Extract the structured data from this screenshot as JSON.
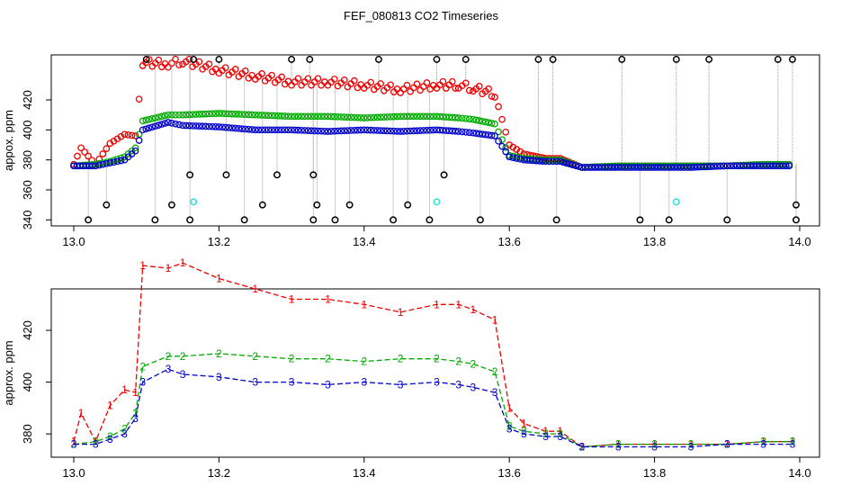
{
  "figure": {
    "title": "FEF_080813  CO2 Timeseries"
  },
  "chart_data": [
    {
      "type": "scatter",
      "title": "",
      "xlabel": "",
      "ylabel": "appox. ppm",
      "xlim": [
        13.0,
        14.0
      ],
      "ylim": [
        336,
        450
      ],
      "x_ticks": [
        13.0,
        13.2,
        13.4,
        13.6,
        13.8,
        14.0
      ],
      "x_tick_labels": [
        "13.0",
        "13.2",
        "13.4",
        "13.6",
        "13.8",
        "14.0"
      ],
      "y_ticks": [
        340,
        360,
        380,
        400,
        420
      ],
      "y_tick_labels": [
        "340",
        "360",
        "380",
        "400",
        "420"
      ],
      "colors": {
        "s1": "#ee0000",
        "s2": "#00aa00",
        "s3": "#0000cc",
        "spike": "#000000",
        "low": "#33dddd",
        "drop": "#999999"
      },
      "series": [
        {
          "key": "s1",
          "values": [
            [
              13.0,
              377
            ],
            [
              13.01,
              388
            ],
            [
              13.03,
              377
            ],
            [
              13.05,
              391
            ],
            [
              13.07,
              397
            ],
            [
              13.085,
              396
            ],
            [
              13.095,
              445
            ],
            [
              13.13,
              444
            ],
            [
              13.15,
              446
            ],
            [
              13.2,
              440
            ],
            [
              13.25,
              436
            ],
            [
              13.3,
              432
            ],
            [
              13.35,
              432
            ],
            [
              13.4,
              430
            ],
            [
              13.45,
              427
            ],
            [
              13.5,
              430
            ],
            [
              13.53,
              430
            ],
            [
              13.55,
              428
            ],
            [
              13.58,
              424
            ],
            [
              13.6,
              390
            ],
            [
              13.62,
              384
            ],
            [
              13.65,
              381
            ],
            [
              13.67,
              381
            ],
            [
              13.7,
              375
            ],
            [
              13.75,
              376
            ],
            [
              13.8,
              376
            ],
            [
              13.85,
              376
            ],
            [
              13.9,
              376
            ],
            [
              13.95,
              377
            ],
            [
              13.99,
              377
            ]
          ]
        },
        {
          "key": "s2",
          "values": [
            [
              13.0,
              376
            ],
            [
              13.03,
              377
            ],
            [
              13.05,
              379
            ],
            [
              13.07,
              382
            ],
            [
              13.085,
              388
            ],
            [
              13.095,
              406
            ],
            [
              13.13,
              410
            ],
            [
              13.15,
              410
            ],
            [
              13.2,
              411
            ],
            [
              13.25,
              410
            ],
            [
              13.3,
              409
            ],
            [
              13.35,
              409
            ],
            [
              13.4,
              408
            ],
            [
              13.45,
              409
            ],
            [
              13.5,
              409
            ],
            [
              13.53,
              408
            ],
            [
              13.55,
              407
            ],
            [
              13.58,
              404
            ],
            [
              13.6,
              383
            ],
            [
              13.62,
              381
            ],
            [
              13.65,
              380
            ],
            [
              13.67,
              380
            ],
            [
              13.7,
              375
            ],
            [
              13.75,
              376
            ],
            [
              13.8,
              376
            ],
            [
              13.85,
              376
            ],
            [
              13.9,
              376
            ],
            [
              13.95,
              377
            ],
            [
              13.99,
              377
            ]
          ]
        },
        {
          "key": "s3",
          "values": [
            [
              13.0,
              376
            ],
            [
              13.03,
              376
            ],
            [
              13.05,
              378
            ],
            [
              13.07,
              380
            ],
            [
              13.085,
              386
            ],
            [
              13.095,
              400
            ],
            [
              13.13,
              405
            ],
            [
              13.15,
              403
            ],
            [
              13.2,
              402
            ],
            [
              13.25,
              400
            ],
            [
              13.3,
              400
            ],
            [
              13.35,
              399
            ],
            [
              13.4,
              400
            ],
            [
              13.45,
              399
            ],
            [
              13.5,
              400
            ],
            [
              13.53,
              399
            ],
            [
              13.55,
              398
            ],
            [
              13.58,
              396
            ],
            [
              13.6,
              382
            ],
            [
              13.62,
              380
            ],
            [
              13.65,
              379
            ],
            [
              13.67,
              379
            ],
            [
              13.7,
              375
            ],
            [
              13.75,
              375
            ],
            [
              13.8,
              375
            ],
            [
              13.85,
              375
            ],
            [
              13.9,
              376
            ],
            [
              13.95,
              376
            ],
            [
              13.99,
              376
            ]
          ]
        },
        {
          "key": "spike",
          "values": [
            [
              13.02,
              340
            ],
            [
              13.045,
              350
            ],
            [
              13.1,
              447
            ],
            [
              13.112,
              340
            ],
            [
              13.135,
              350
            ],
            [
              13.16,
              340
            ],
            [
              13.16,
              370
            ],
            [
              13.165,
              447
            ],
            [
              13.2,
              447
            ],
            [
              13.21,
              370
            ],
            [
              13.235,
              340
            ],
            [
              13.26,
              350
            ],
            [
              13.28,
              370
            ],
            [
              13.3,
              447
            ],
            [
              13.325,
              447
            ],
            [
              13.33,
              340
            ],
            [
              13.335,
              350
            ],
            [
              13.33,
              370
            ],
            [
              13.36,
              340
            ],
            [
              13.38,
              350
            ],
            [
              13.42,
              447
            ],
            [
              13.44,
              340
            ],
            [
              13.46,
              350
            ],
            [
              13.49,
              340
            ],
            [
              13.5,
              447
            ],
            [
              13.51,
              370
            ],
            [
              13.54,
              447
            ],
            [
              13.56,
              340
            ],
            [
              13.64,
              447
            ],
            [
              13.66,
              447
            ],
            [
              13.665,
              340
            ],
            [
              13.755,
              447
            ],
            [
              13.78,
              340
            ],
            [
              13.82,
              340
            ],
            [
              13.83,
              447
            ],
            [
              13.875,
              447
            ],
            [
              13.9,
              340
            ],
            [
              13.97,
              447
            ],
            [
              13.99,
              447
            ],
            [
              13.995,
              350
            ],
            [
              13.995,
              340
            ]
          ]
        },
        {
          "key": "low",
          "values": [
            [
              13.165,
              352
            ],
            [
              13.5,
              352
            ],
            [
              13.83,
              352
            ]
          ]
        }
      ]
    },
    {
      "type": "line",
      "title": "",
      "xlabel": "",
      "ylabel": "approx. ppm",
      "xlim": [
        13.0,
        14.0
      ],
      "ylim": [
        371,
        436
      ],
      "x_ticks": [
        13.0,
        13.2,
        13.4,
        13.6,
        13.8,
        14.0
      ],
      "x_tick_labels": [
        "13.0",
        "13.2",
        "13.4",
        "13.6",
        "13.8",
        "14.0"
      ],
      "y_ticks": [
        380,
        400,
        420
      ],
      "y_tick_labels": [
        "380",
        "400",
        "420"
      ],
      "colors": {
        "s1": "#ee0000",
        "s2": "#00aa00",
        "s3": "#0000cc"
      },
      "series": [
        {
          "key": "s1",
          "glyph": "1",
          "values": [
            [
              13.0,
              377
            ],
            [
              13.01,
              388
            ],
            [
              13.03,
              377
            ],
            [
              13.05,
              391
            ],
            [
              13.07,
              397
            ],
            [
              13.085,
              396
            ],
            [
              13.095,
              445
            ],
            [
              13.13,
              444
            ],
            [
              13.15,
              446
            ],
            [
              13.2,
              440
            ],
            [
              13.25,
              436
            ],
            [
              13.3,
              432
            ],
            [
              13.35,
              432
            ],
            [
              13.4,
              430
            ],
            [
              13.45,
              427
            ],
            [
              13.5,
              430
            ],
            [
              13.53,
              430
            ],
            [
              13.55,
              428
            ],
            [
              13.58,
              424
            ],
            [
              13.6,
              390
            ],
            [
              13.62,
              384
            ],
            [
              13.65,
              381
            ],
            [
              13.67,
              381
            ],
            [
              13.7,
              375
            ],
            [
              13.75,
              376
            ],
            [
              13.8,
              376
            ],
            [
              13.85,
              376
            ],
            [
              13.9,
              376
            ],
            [
              13.95,
              377
            ],
            [
              13.99,
              377
            ]
          ]
        },
        {
          "key": "s2",
          "glyph": "2",
          "values": [
            [
              13.0,
              376
            ],
            [
              13.03,
              377
            ],
            [
              13.05,
              379
            ],
            [
              13.07,
              382
            ],
            [
              13.085,
              388
            ],
            [
              13.095,
              406
            ],
            [
              13.13,
              410
            ],
            [
              13.15,
              410
            ],
            [
              13.2,
              411
            ],
            [
              13.25,
              410
            ],
            [
              13.3,
              409
            ],
            [
              13.35,
              409
            ],
            [
              13.4,
              408
            ],
            [
              13.45,
              409
            ],
            [
              13.5,
              409
            ],
            [
              13.53,
              408
            ],
            [
              13.55,
              407
            ],
            [
              13.58,
              404
            ],
            [
              13.6,
              383
            ],
            [
              13.62,
              381
            ],
            [
              13.65,
              380
            ],
            [
              13.67,
              380
            ],
            [
              13.7,
              375
            ],
            [
              13.75,
              376
            ],
            [
              13.8,
              376
            ],
            [
              13.85,
              376
            ],
            [
              13.9,
              376
            ],
            [
              13.95,
              377
            ],
            [
              13.99,
              377
            ]
          ]
        },
        {
          "key": "s3",
          "glyph": "3",
          "values": [
            [
              13.0,
              376
            ],
            [
              13.03,
              376
            ],
            [
              13.05,
              378
            ],
            [
              13.07,
              380
            ],
            [
              13.085,
              386
            ],
            [
              13.095,
              400
            ],
            [
              13.13,
              405
            ],
            [
              13.15,
              403
            ],
            [
              13.2,
              402
            ],
            [
              13.25,
              400
            ],
            [
              13.3,
              400
            ],
            [
              13.35,
              399
            ],
            [
              13.4,
              400
            ],
            [
              13.45,
              399
            ],
            [
              13.5,
              400
            ],
            [
              13.53,
              399
            ],
            [
              13.55,
              398
            ],
            [
              13.58,
              396
            ],
            [
              13.6,
              382
            ],
            [
              13.62,
              380
            ],
            [
              13.65,
              379
            ],
            [
              13.67,
              379
            ],
            [
              13.7,
              375
            ],
            [
              13.75,
              375
            ],
            [
              13.8,
              375
            ],
            [
              13.85,
              375
            ],
            [
              13.9,
              376
            ],
            [
              13.95,
              376
            ],
            [
              13.99,
              376
            ]
          ]
        }
      ]
    }
  ]
}
